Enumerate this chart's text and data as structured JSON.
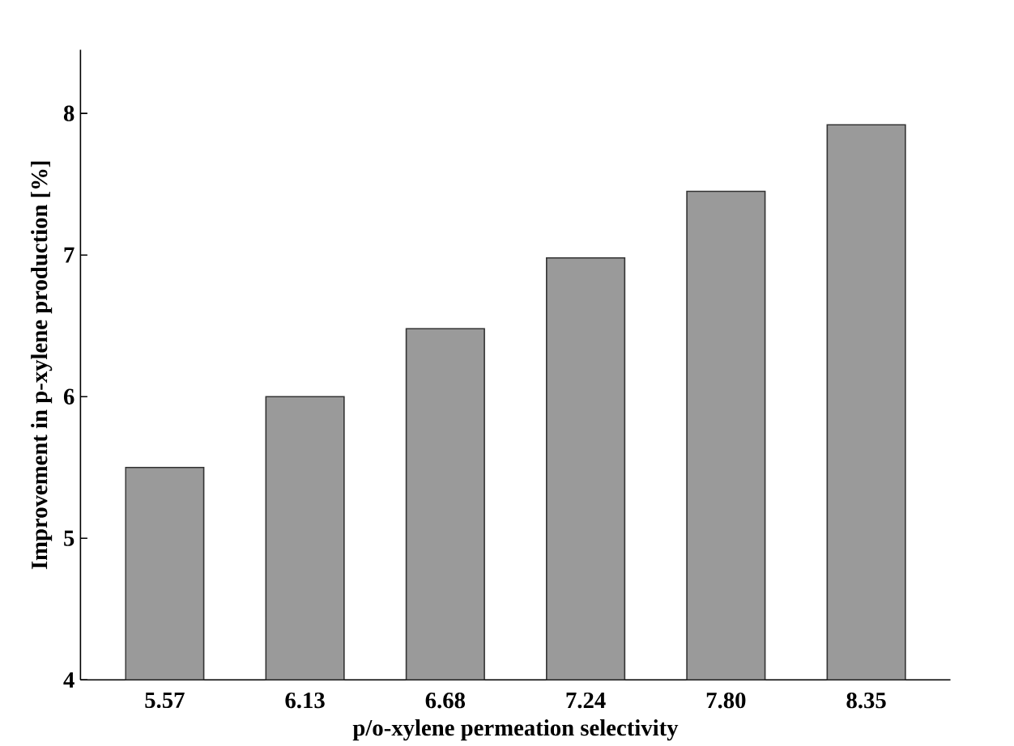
{
  "chart_data": {
    "type": "bar",
    "xlabel": "p/o-xylene permeation selectivity",
    "ylabel": "Improvement in p-xylene production [%]",
    "categories": [
      "5.57",
      "6.13",
      "6.68",
      "7.24",
      "7.80",
      "8.35"
    ],
    "values": [
      5.5,
      6.0,
      6.48,
      6.98,
      7.45,
      7.92
    ],
    "color": "#9a9a9a",
    "ylim": [
      4,
      8.45
    ],
    "yticks": [
      4,
      5,
      6,
      7,
      8
    ],
    "grid": false
  }
}
